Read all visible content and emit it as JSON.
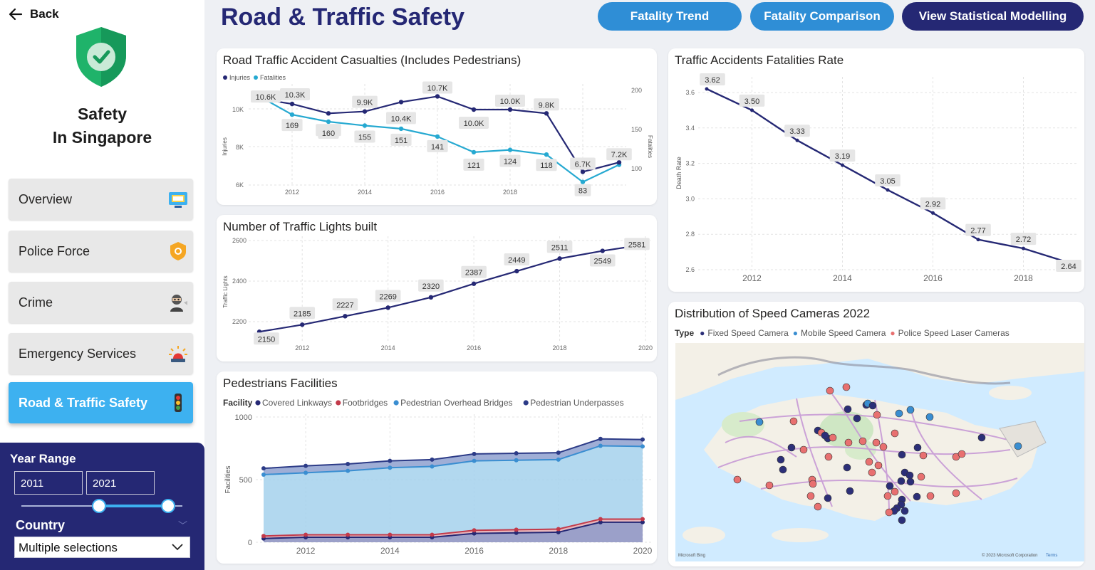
{
  "sidebar": {
    "back_label": "Back",
    "app_title_line1": "Safety",
    "app_title_line2": "In Singapore",
    "nav": [
      {
        "label": "Overview",
        "icon": "monitor-icon"
      },
      {
        "label": "Police Force",
        "icon": "police-badge-icon"
      },
      {
        "label": "Crime",
        "icon": "thief-icon"
      },
      {
        "label": "Emergency Services",
        "icon": "siren-icon"
      },
      {
        "label": "Road & Traffic Safety",
        "icon": "traffic-light-icon",
        "active": true
      }
    ]
  },
  "filters": {
    "year_range_label": "Year Range",
    "year_from": "2011",
    "year_to": "2021",
    "slider_from_fraction": 0.49,
    "slider_to_fraction": 0.91,
    "country_label": "Country",
    "country_value": "Multiple selections"
  },
  "header": {
    "title": "Road & Traffic Safety",
    "buttons": [
      {
        "label": "Fatality Trend",
        "color": "#2f8ed6"
      },
      {
        "label": "Fatality Comparison",
        "color": "#2f8ed6"
      },
      {
        "label": "View Statistical Modelling",
        "color": "#252874"
      }
    ]
  },
  "colors": {
    "navy": "#252874",
    "teal": "#26a9d1",
    "red": "#c23a4a",
    "blue": "#3a8ed1",
    "lightblue": "#a5d1ec"
  },
  "chart_data": [
    {
      "id": "casualties",
      "type": "line",
      "title": "Road Traffic Accident Casualties (Includes Pedestrians)",
      "x": [
        2011,
        2012,
        2013,
        2014,
        2015,
        2016,
        2017,
        2018,
        2019,
        2020,
        2021
      ],
      "x_ticks": [
        "2012",
        "2014",
        "2016",
        "2018",
        "2020"
      ],
      "ylabel": "Injuries",
      "y2label": "Fatalities",
      "y_ticks": [
        "10K",
        "8K",
        "6K"
      ],
      "y2_ticks": [
        "200",
        "150",
        "100"
      ],
      "ylim": [
        5900,
        11000
      ],
      "y2lim": [
        95,
        200
      ],
      "legend": [
        "Injuries",
        "Fatalities"
      ],
      "series": [
        {
          "name": "Injuries",
          "axis": "left",
          "values": [
            10600,
            10300,
            9800,
            9900,
            10400,
            10700,
            10000,
            10000,
            9800,
            6700,
            7200
          ],
          "labels": [
            "10.6K",
            "10.3K",
            "9.8K",
            "9.9K",
            "10.4K",
            "10.7K",
            "10.0K",
            "10.0K",
            "9.8K",
            "6.7K",
            "7.2K"
          ]
        },
        {
          "name": "Fatalities",
          "axis": "right",
          "values": [
            195,
            169,
            160,
            155,
            151,
            141,
            121,
            124,
            118,
            83,
            105
          ],
          "labels": [
            "",
            "169",
            "160",
            "155",
            "151",
            "141",
            "121",
            "124",
            "118",
            "83",
            ""
          ]
        }
      ]
    },
    {
      "id": "lights",
      "type": "line",
      "title": "Number of Traffic Lights built",
      "x": [
        2011,
        2012,
        2013,
        2014,
        2015,
        2016,
        2017,
        2018,
        2019,
        2020
      ],
      "x_ticks": [
        "2012",
        "2014",
        "2016",
        "2018",
        "2020"
      ],
      "ylabel": "Traffic Lights",
      "y_ticks": [
        "2600",
        "2400",
        "2200"
      ],
      "ylim": [
        2155,
        2600
      ],
      "series": [
        {
          "name": "Traffic Lights",
          "values": [
            2150,
            2185,
            2227,
            2269,
            2320,
            2387,
            2449,
            2511,
            2549,
            2581
          ],
          "labels": [
            "2150",
            "2185",
            "2227",
            "2269",
            "2320",
            "2387",
            "2449",
            "2511",
            "2549",
            "2581"
          ]
        }
      ]
    },
    {
      "id": "pedestrian",
      "type": "area",
      "title": "Pedestrians Facilities",
      "legend_title": "Facility",
      "x": [
        2011,
        2012,
        2013,
        2014,
        2015,
        2016,
        2017,
        2018,
        2019,
        2020
      ],
      "x_ticks": [
        "2012",
        "2014",
        "2016",
        "2018",
        "2020"
      ],
      "ylabel": "Facilities",
      "y_ticks": [
        "1000",
        "500",
        "0"
      ],
      "ylim": [
        0,
        1000
      ],
      "series": [
        {
          "name": "Covered Linkways",
          "color": "#252874",
          "values": [
            30,
            40,
            40,
            40,
            40,
            70,
            75,
            80,
            160,
            160
          ]
        },
        {
          "name": "Footbridges",
          "color": "#c23a4a",
          "values": [
            50,
            60,
            60,
            60,
            60,
            95,
            100,
            105,
            185,
            185
          ]
        },
        {
          "name": "Pedestrian Overhead Bridges",
          "color": "#3a8ed1",
          "values": [
            540,
            555,
            570,
            595,
            605,
            650,
            655,
            660,
            770,
            765
          ]
        },
        {
          "name": "Pedestrian Underpasses",
          "color": "#2c3b87",
          "values": [
            590,
            610,
            625,
            650,
            660,
            705,
            710,
            715,
            825,
            820
          ]
        }
      ]
    },
    {
      "id": "fatality_rate",
      "type": "line",
      "title": "Traffic Accidents Fatalities Rate",
      "x": [
        2011,
        2012,
        2013,
        2014,
        2015,
        2016,
        2017,
        2018,
        2019
      ],
      "x_ticks": [
        "2012",
        "2014",
        "2016",
        "2018"
      ],
      "ylabel": "Death Rate",
      "y_ticks": [
        "3.6",
        "3.4",
        "3.2",
        "3.0",
        "2.8",
        "2.6"
      ],
      "ylim": [
        2.6,
        3.6
      ],
      "series": [
        {
          "name": "Death Rate",
          "values": [
            3.62,
            3.5,
            3.33,
            3.19,
            3.05,
            2.92,
            2.77,
            2.72,
            2.64
          ],
          "labels": [
            "3.62",
            "3.50",
            "3.33",
            "3.19",
            "3.05",
            "2.92",
            "2.77",
            "2.72",
            "2.64"
          ]
        }
      ]
    }
  ],
  "map": {
    "title": "Distribution of Speed Cameras 2022",
    "legend_title": "Type",
    "legend": [
      {
        "name": "Fixed Speed Camera",
        "color": "#2c2f78"
      },
      {
        "name": "Mobile Speed Camera",
        "color": "#3a8ed1"
      },
      {
        "name": "Police Speed Laser Cameras",
        "color": "#e87070"
      }
    ],
    "attribution": "Microsoft Bing",
    "copyright": "© 2023 Microsoft Corporation",
    "terms": "Terms"
  }
}
